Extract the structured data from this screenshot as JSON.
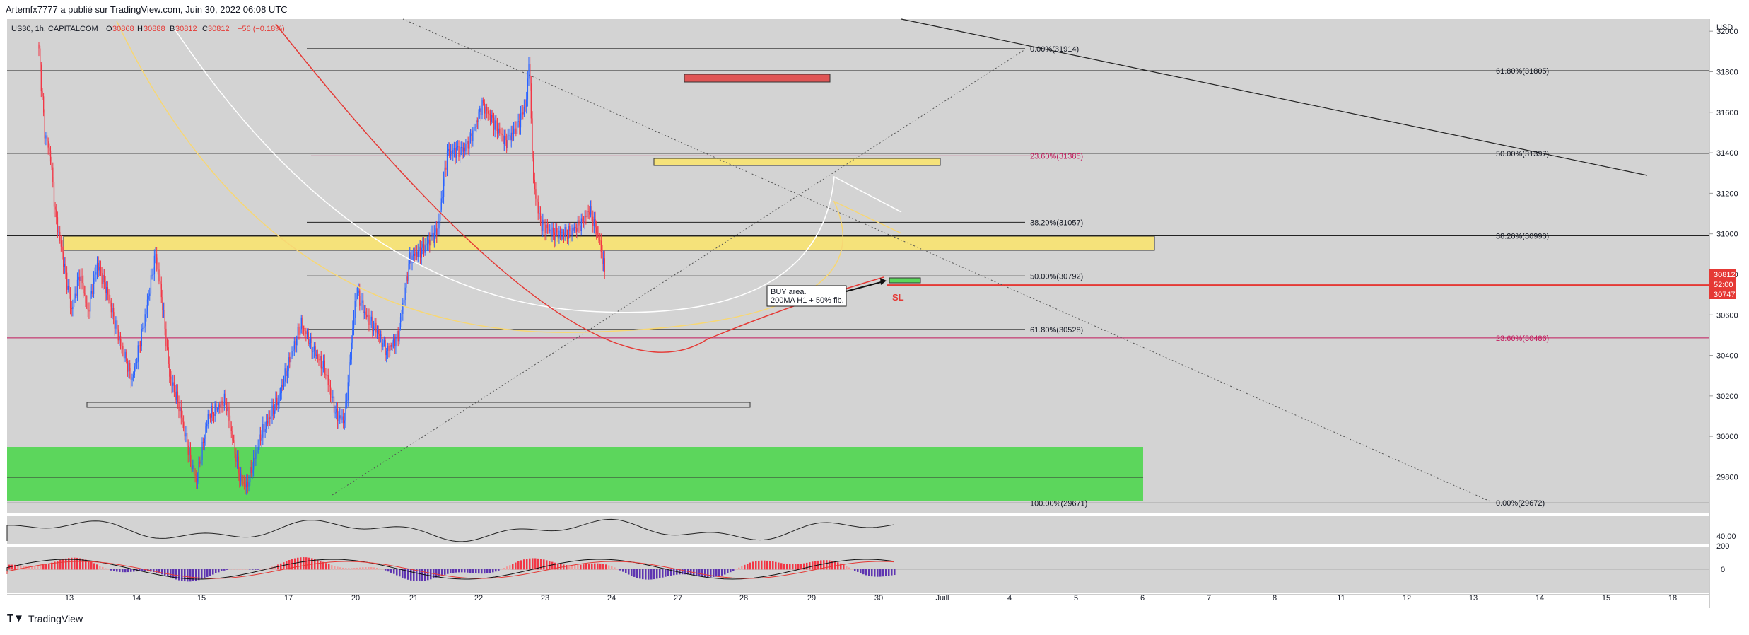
{
  "header": {
    "publish_line": "Artemfx7777 a publié sur TradingView.com, Juin 30, 2022 06:08 UTC"
  },
  "footer": {
    "logo": "T▼",
    "brand": "TradingView"
  },
  "chart_data": {
    "type": "candlestick",
    "symbol_line": {
      "symbol": "US30, 1h, CAPITALCOM",
      "open_label": "O",
      "open": "30868",
      "high_label": "H",
      "high": "30888",
      "low_label": "B",
      "low": "30812",
      "close_label": "C",
      "close": "30812",
      "change": "−56 (−0.18%)"
    },
    "currency": "USD",
    "ylim": [
      29620,
      32060
    ],
    "price_ticks": [
      "32000",
      "31800",
      "31600",
      "31400",
      "31200",
      "31000",
      "30800",
      "30600",
      "30400",
      "30200",
      "30000",
      "29800"
    ],
    "x_labels": [
      "13",
      "14",
      "15",
      "17",
      "20",
      "21",
      "22",
      "23",
      "24",
      "27",
      "28",
      "29",
      "30",
      "Juill",
      "4",
      "5",
      "6",
      "7",
      "8",
      "11",
      "12",
      "13",
      "14",
      "15",
      "18"
    ],
    "price_badges": {
      "last": "30812",
      "timer": "52:00",
      "sl": "30747"
    },
    "fib_labels": [
      {
        "text": "0.00%(31914)",
        "price": 31914,
        "color": "#131722"
      },
      {
        "text": "61.80%(31805)",
        "price": 31805,
        "color": "#131722"
      },
      {
        "text": "50.00%(31397)",
        "price": 31397,
        "color": "#131722"
      },
      {
        "text": "23.60%(31385)",
        "price": 31385,
        "color": "#c2185b"
      },
      {
        "text": "38.20%(31057)",
        "price": 31057,
        "color": "#131722"
      },
      {
        "text": "38.20%(30990)",
        "price": 30990,
        "color": "#131722"
      },
      {
        "text": "50.00%(30792)",
        "price": 30792,
        "color": "#131722"
      },
      {
        "text": "61.80%(30528)",
        "price": 30528,
        "color": "#131722"
      },
      {
        "text": "23.60%(30486)",
        "price": 30486,
        "color": "#c2185b"
      },
      {
        "text": "100.00%(29671)",
        "price": 29671,
        "color": "#131722"
      },
      {
        "text": "0.00%(29672)",
        "price": 29672,
        "color": "#131722"
      }
    ],
    "annotation": {
      "line1": "BUY area.",
      "line2": "200MA H1 + 50% fib."
    },
    "sl_label": "SL",
    "oscillator_label": "40.00",
    "macd_top_label": "200",
    "macd_zero_label": "0",
    "candle_waypoints": [
      [
        0,
        31900
      ],
      [
        5,
        31500
      ],
      [
        10,
        31380
      ],
      [
        14,
        31100
      ],
      [
        20,
        30900
      ],
      [
        28,
        30620
      ],
      [
        35,
        30800
      ],
      [
        42,
        30620
      ],
      [
        50,
        30850
      ],
      [
        58,
        30720
      ],
      [
        68,
        30500
      ],
      [
        80,
        30280
      ],
      [
        90,
        30560
      ],
      [
        100,
        30900
      ],
      [
        106,
        30650
      ],
      [
        112,
        30300
      ],
      [
        120,
        30150
      ],
      [
        130,
        29880
      ],
      [
        135,
        29780
      ],
      [
        145,
        30100
      ],
      [
        160,
        30180
      ],
      [
        172,
        29800
      ],
      [
        178,
        29750
      ],
      [
        190,
        30000
      ],
      [
        205,
        30180
      ],
      [
        215,
        30380
      ],
      [
        225,
        30560
      ],
      [
        235,
        30430
      ],
      [
        245,
        30330
      ],
      [
        255,
        30100
      ],
      [
        262,
        30080
      ],
      [
        272,
        30720
      ],
      [
        280,
        30600
      ],
      [
        290,
        30520
      ],
      [
        298,
        30420
      ],
      [
        308,
        30500
      ],
      [
        318,
        30880
      ],
      [
        330,
        30930
      ],
      [
        342,
        31020
      ],
      [
        350,
        31400
      ],
      [
        365,
        31420
      ],
      [
        372,
        31500
      ],
      [
        380,
        31640
      ],
      [
        390,
        31550
      ],
      [
        400,
        31450
      ],
      [
        410,
        31530
      ],
      [
        418,
        31650
      ],
      [
        420,
        31870
      ],
      [
        424,
        31250
      ],
      [
        430,
        31050
      ],
      [
        442,
        31000
      ],
      [
        455,
        31010
      ],
      [
        465,
        31050
      ],
      [
        472,
        31120
      ],
      [
        480,
        30980
      ],
      [
        485,
        30812
      ]
    ],
    "indicator_colors": {
      "up": "#2962ff",
      "down": "#f23645",
      "ma_red": "#e53935",
      "ma_yellow": "#f7d774",
      "ma_white": "#ffffff"
    }
  }
}
